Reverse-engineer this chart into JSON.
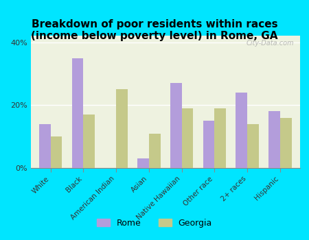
{
  "title": "Breakdown of poor residents within races\n(income below poverty level) in Rome, GA",
  "categories": [
    "White",
    "Black",
    "American Indian",
    "Asian",
    "Native Hawaiian",
    "Other race",
    "2+ races",
    "Hispanic"
  ],
  "rome_values": [
    14,
    35,
    0,
    3,
    27,
    15,
    24,
    18
  ],
  "georgia_values": [
    10,
    17,
    25,
    11,
    19,
    19,
    14,
    16
  ],
  "rome_color": "#b39ddb",
  "georgia_color": "#c5c98a",
  "background_outer": "#00e5ff",
  "background_inner": "#eef2e0",
  "bar_width": 0.35,
  "ylim": [
    0,
    42
  ],
  "yticks": [
    0,
    20,
    40
  ],
  "ytick_labels": [
    "0%",
    "20%",
    "40%"
  ],
  "title_fontsize": 11,
  "legend_labels": [
    "Rome",
    "Georgia"
  ],
  "watermark": "City-Data.com"
}
